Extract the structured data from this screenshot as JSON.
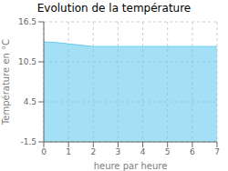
{
  "chart_data": {
    "type": "area",
    "title": "Evolution de la température",
    "xlabel": "heure par heure",
    "ylabel": "Température en °C",
    "x": [
      0,
      0.5,
      1.0,
      1.5,
      2.0,
      3.0,
      4.0,
      5.0,
      6.0,
      6.5,
      7.0
    ],
    "values": [
      13.5,
      13.4,
      13.2,
      13.0,
      12.8,
      12.8,
      12.8,
      12.8,
      12.8,
      12.8,
      12.8
    ],
    "color": "#66ccee",
    "xlim": [
      0,
      7
    ],
    "ylim": [
      -1.5,
      16.5
    ],
    "xticks": [
      0,
      1,
      2,
      3,
      4,
      5,
      6,
      7
    ],
    "yticks": [
      -1.5,
      4.5,
      10.5,
      16.5
    ],
    "grid": true
  }
}
